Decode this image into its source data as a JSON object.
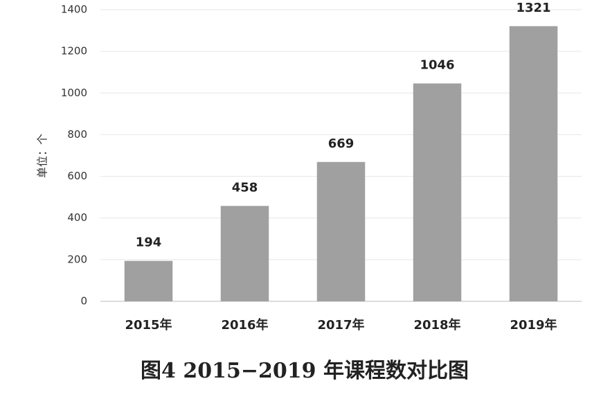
{
  "chart_data": {
    "type": "bar",
    "caption": "图4   2015−2019 年课程数对比图",
    "ylabel": "单位：个",
    "categories": [
      "2015年",
      "2016年",
      "2017年",
      "2018年",
      "2019年"
    ],
    "values": [
      194,
      458,
      669,
      1046,
      1321
    ],
    "color": "#a0a0a0",
    "ylim": [
      0,
      1400
    ],
    "yticks": [
      0,
      200,
      400,
      600,
      800,
      1000,
      1200,
      1400
    ],
    "grid": true
  }
}
